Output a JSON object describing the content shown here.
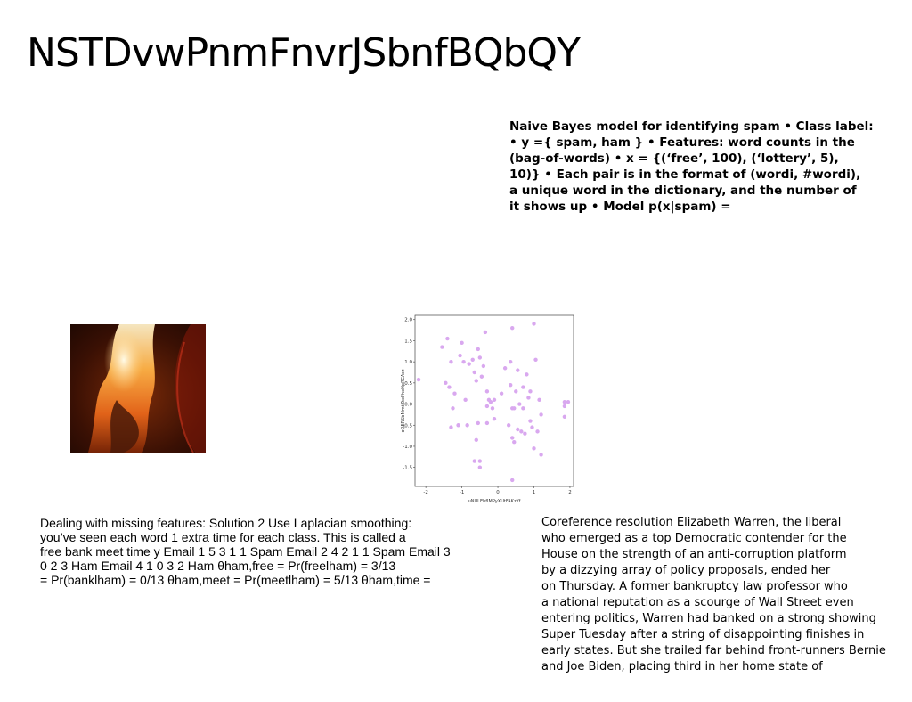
{
  "title": "NSTDvwPnmFnvrJSbnfBQbQY",
  "bold_block": {
    "lines": [
      "Naive Bayes model for identifying spam • Class label:",
      "• y ={ spam, ham } • Features: word counts in the",
      "(bag-of-words) • x = {(‘free’, 100), (‘lottery’, 5),",
      "10)} • Each pair is in the format of (wordi, #wordi),",
      "a unique word in the dictionary, and the number of",
      "it shows up • Model p(x|spam) ="
    ]
  },
  "left_text": {
    "lines": [
      "Dealing with missing features: Solution 2 Use Laplacian smoothing:",
      "you’ve seen each word 1 extra time for each class. This is called a",
      "free bank meet time y Email 1 5 3 1 1 Spam Email 2 4 2 1 1 Spam Email 3",
      "0 2 3 Ham Email 4 1 0 3 2 Ham θham,free = Pr(freelham) = 3/13",
      "= Pr(banklham) = 0/13 θham,meet = Pr(meetlham) = 5/13 θham,time ="
    ]
  },
  "right_text": {
    "lines": [
      "Coreference resolution Elizabeth Warren, the liberal",
      "who emerged as a top Democratic contender for the",
      "House on the strength of an anti-corruption platform",
      "by a dizzying array of policy proposals, ended her",
      "on Thursday. A former bankruptcy law professor who",
      "a national reputation as a scourge of Wall Street even",
      "entering politics, Warren had banked on a strong showing",
      "Super Tuesday after a string of disappointing finishes in",
      "early states. But she trailed far behind front-runners Bernie",
      "and Joe Biden, placing third in her home state of"
    ]
  },
  "chart_data": {
    "type": "scatter",
    "xlabel": "uNULEhfIMPyXUtFAKzYf",
    "ylabel": "oQERSbMmtZteFheHpRCAcz",
    "xlim": [
      -2.3,
      2.1
    ],
    "ylim": [
      -1.95,
      2.1
    ],
    "xticks": [
      "-2",
      "-1",
      "0",
      "1",
      "2"
    ],
    "yticks": [
      "2.0",
      "1.5",
      "1.0",
      "0.5",
      "0.0",
      "-0.5",
      "-1.0",
      "-1.5"
    ],
    "point_color": "#d9a8ef",
    "points": [
      [
        -2.2,
        0.58
      ],
      [
        -1.55,
        1.35
      ],
      [
        -1.4,
        1.55
      ],
      [
        -1.3,
        1.0
      ],
      [
        -1.45,
        0.5
      ],
      [
        -1.35,
        0.4
      ],
      [
        -1.2,
        0.25
      ],
      [
        -1.25,
        -0.1
      ],
      [
        -1.3,
        -0.55
      ],
      [
        -1.1,
        -0.5
      ],
      [
        -1.05,
        1.15
      ],
      [
        -1.0,
        1.45
      ],
      [
        -0.95,
        1.0
      ],
      [
        -0.9,
        0.1
      ],
      [
        -0.8,
        0.95
      ],
      [
        -0.7,
        1.05
      ],
      [
        -0.65,
        0.75
      ],
      [
        -0.6,
        0.55
      ],
      [
        -0.55,
        1.3
      ],
      [
        -0.5,
        1.1
      ],
      [
        -0.45,
        0.65
      ],
      [
        -0.4,
        0.9
      ],
      [
        -0.35,
        1.7
      ],
      [
        -0.3,
        0.3
      ],
      [
        -0.25,
        0.1
      ],
      [
        -0.3,
        -0.05
      ],
      [
        -0.2,
        0.05
      ],
      [
        -0.15,
        -0.1
      ],
      [
        -0.1,
        0.1
      ],
      [
        -0.55,
        -0.45
      ],
      [
        -0.6,
        -0.85
      ],
      [
        -0.65,
        -1.35
      ],
      [
        -0.5,
        -1.35
      ],
      [
        -0.5,
        -1.5
      ],
      [
        -0.3,
        -0.45
      ],
      [
        -0.1,
        -0.35
      ],
      [
        0.1,
        0.25
      ],
      [
        0.2,
        0.85
      ],
      [
        0.3,
        -0.5
      ],
      [
        0.35,
        1.0
      ],
      [
        0.35,
        0.45
      ],
      [
        0.4,
        -0.1
      ],
      [
        0.45,
        -0.1
      ],
      [
        0.4,
        1.8
      ],
      [
        0.4,
        -0.8
      ],
      [
        0.45,
        -0.9
      ],
      [
        0.5,
        0.3
      ],
      [
        0.55,
        0.8
      ],
      [
        0.55,
        -0.6
      ],
      [
        0.6,
        0.0
      ],
      [
        0.65,
        -0.65
      ],
      [
        0.7,
        0.4
      ],
      [
        0.7,
        -0.1
      ],
      [
        0.75,
        -0.7
      ],
      [
        0.8,
        0.7
      ],
      [
        0.85,
        0.15
      ],
      [
        0.9,
        -0.4
      ],
      [
        0.9,
        0.3
      ],
      [
        0.95,
        -0.55
      ],
      [
        1.0,
        -1.05
      ],
      [
        1.0,
        1.9
      ],
      [
        1.05,
        1.05
      ],
      [
        1.1,
        -0.65
      ],
      [
        1.15,
        0.1
      ],
      [
        1.2,
        -0.25
      ],
      [
        1.2,
        -1.2
      ],
      [
        1.85,
        -0.05
      ],
      [
        1.85,
        -0.3
      ],
      [
        1.85,
        0.05
      ],
      [
        1.95,
        0.05
      ],
      [
        0.4,
        -1.8
      ],
      [
        -0.85,
        -0.5
      ]
    ]
  }
}
